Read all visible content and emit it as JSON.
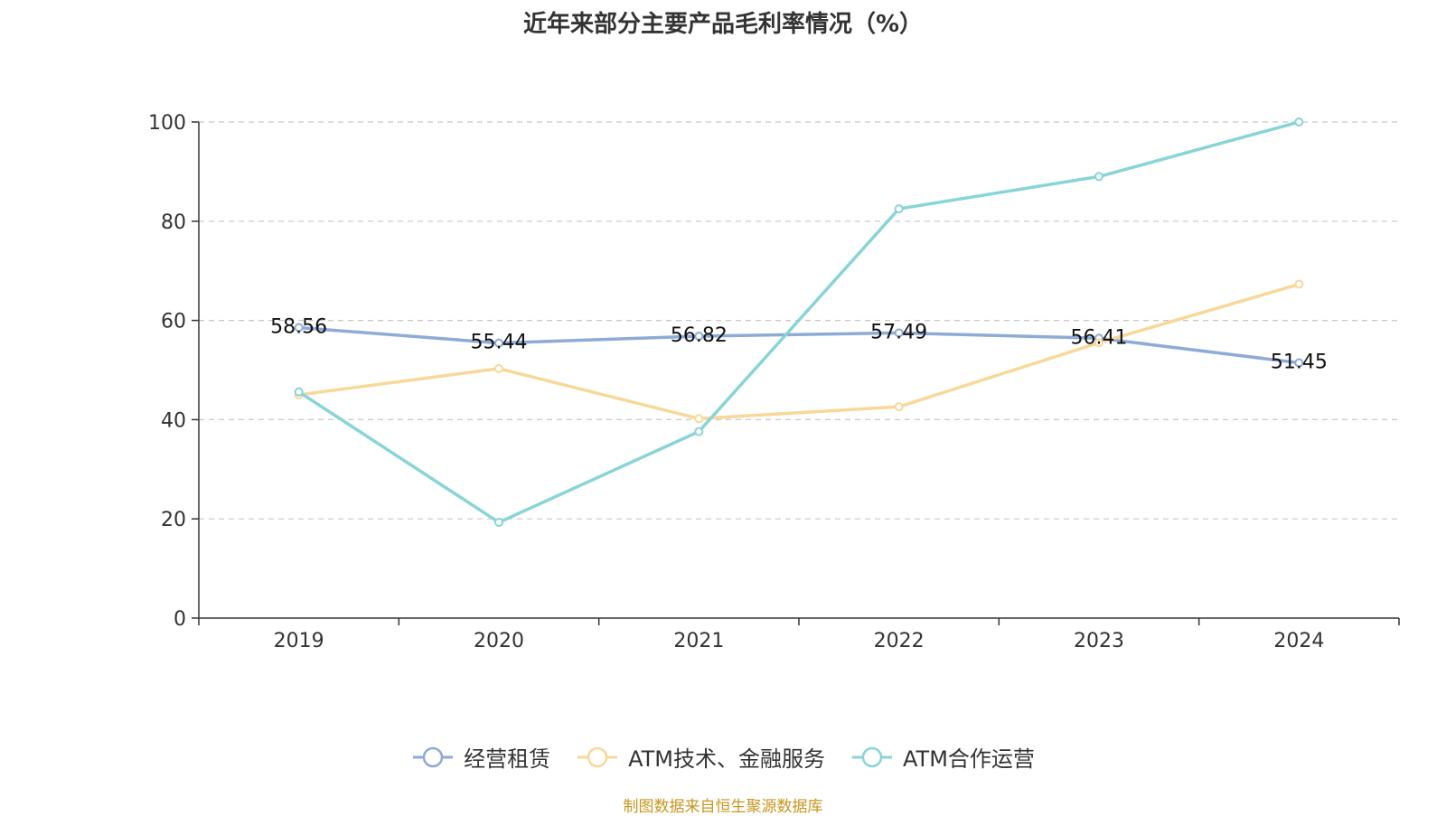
{
  "chart_data": {
    "type": "line",
    "title": "近年来部分主要产品毛利率情况（%）",
    "categories": [
      "2019",
      "2020",
      "2021",
      "2022",
      "2023",
      "2024"
    ],
    "ylim": [
      0,
      100
    ],
    "yticks": [
      "0",
      "20",
      "40",
      "60",
      "80",
      "100"
    ],
    "grid": true,
    "legend_position": "bottom-center",
    "series": [
      {
        "name": "经营租赁",
        "color": "#8eaad6",
        "values": [
          58.56,
          55.44,
          56.82,
          57.49,
          56.41,
          51.45
        ],
        "labels": [
          "58.56",
          "55.44",
          "56.82",
          "57.49",
          "56.41",
          "51.45"
        ]
      },
      {
        "name": "ATM技术、金融服务",
        "color": "#f8d898",
        "values": [
          45.0,
          50.3,
          40.2,
          42.6,
          55.5,
          67.3
        ]
      },
      {
        "name": "ATM合作运营",
        "color": "#88d4d6",
        "values": [
          45.6,
          19.3,
          37.6,
          82.5,
          89.0,
          100.0
        ]
      }
    ]
  },
  "source": {
    "text": "制图数据来自恒生聚源数据库",
    "color": "#c8961e"
  }
}
